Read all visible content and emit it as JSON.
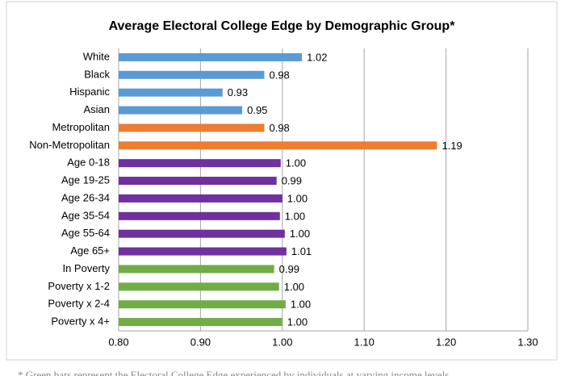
{
  "chart_data": {
    "type": "bar",
    "orientation": "horizontal",
    "title": "Average Electoral College Edge by Demographic Group*",
    "categories": [
      "White",
      "Black",
      "Hispanic",
      "Asian",
      "Metropolitan",
      "Non-Metropolitan",
      "Age 0-18",
      "Age 19-25",
      "Age 26-34",
      "Age 35-54",
      "Age 55-64",
      "Age 65+",
      "In Poverty",
      "Poverty x 1-2",
      "Poverty x 2-4",
      "Poverty x 4+"
    ],
    "values": [
      1.024,
      0.978,
      0.927,
      0.951,
      0.978,
      1.189,
      0.998,
      0.993,
      1.0,
      0.997,
      1.003,
      1.005,
      0.99,
      0.996,
      1.004,
      1.0
    ],
    "value_labels": [
      "1.02",
      "0.98",
      "0.93",
      "0.95",
      "0.98",
      "1.19",
      "1.00",
      "0.99",
      "1.00",
      "1.00",
      "1.00",
      "1.01",
      "0.99",
      "1.00",
      "1.00",
      "1.00"
    ],
    "colors": [
      "#5b9bd5",
      "#5b9bd5",
      "#5b9bd5",
      "#5b9bd5",
      "#ed7d31",
      "#ed7d31",
      "#7030a0",
      "#7030a0",
      "#7030a0",
      "#7030a0",
      "#7030a0",
      "#7030a0",
      "#70ad47",
      "#70ad47",
      "#70ad47",
      "#70ad47"
    ],
    "xlim": [
      0.8,
      1.3
    ],
    "xticks": [
      {
        "value": 0.8,
        "label": "0.80"
      },
      {
        "value": 0.9,
        "label": "0.90"
      },
      {
        "value": 1.0,
        "label": "1.00"
      },
      {
        "value": 1.1,
        "label": "1.10"
      },
      {
        "value": 1.2,
        "label": "1.20"
      },
      {
        "value": 1.3,
        "label": "1.30"
      }
    ],
    "grid": true,
    "footnote": "* Green bars represent the Electoral College Edge experienced by individuals at varying income levels"
  }
}
